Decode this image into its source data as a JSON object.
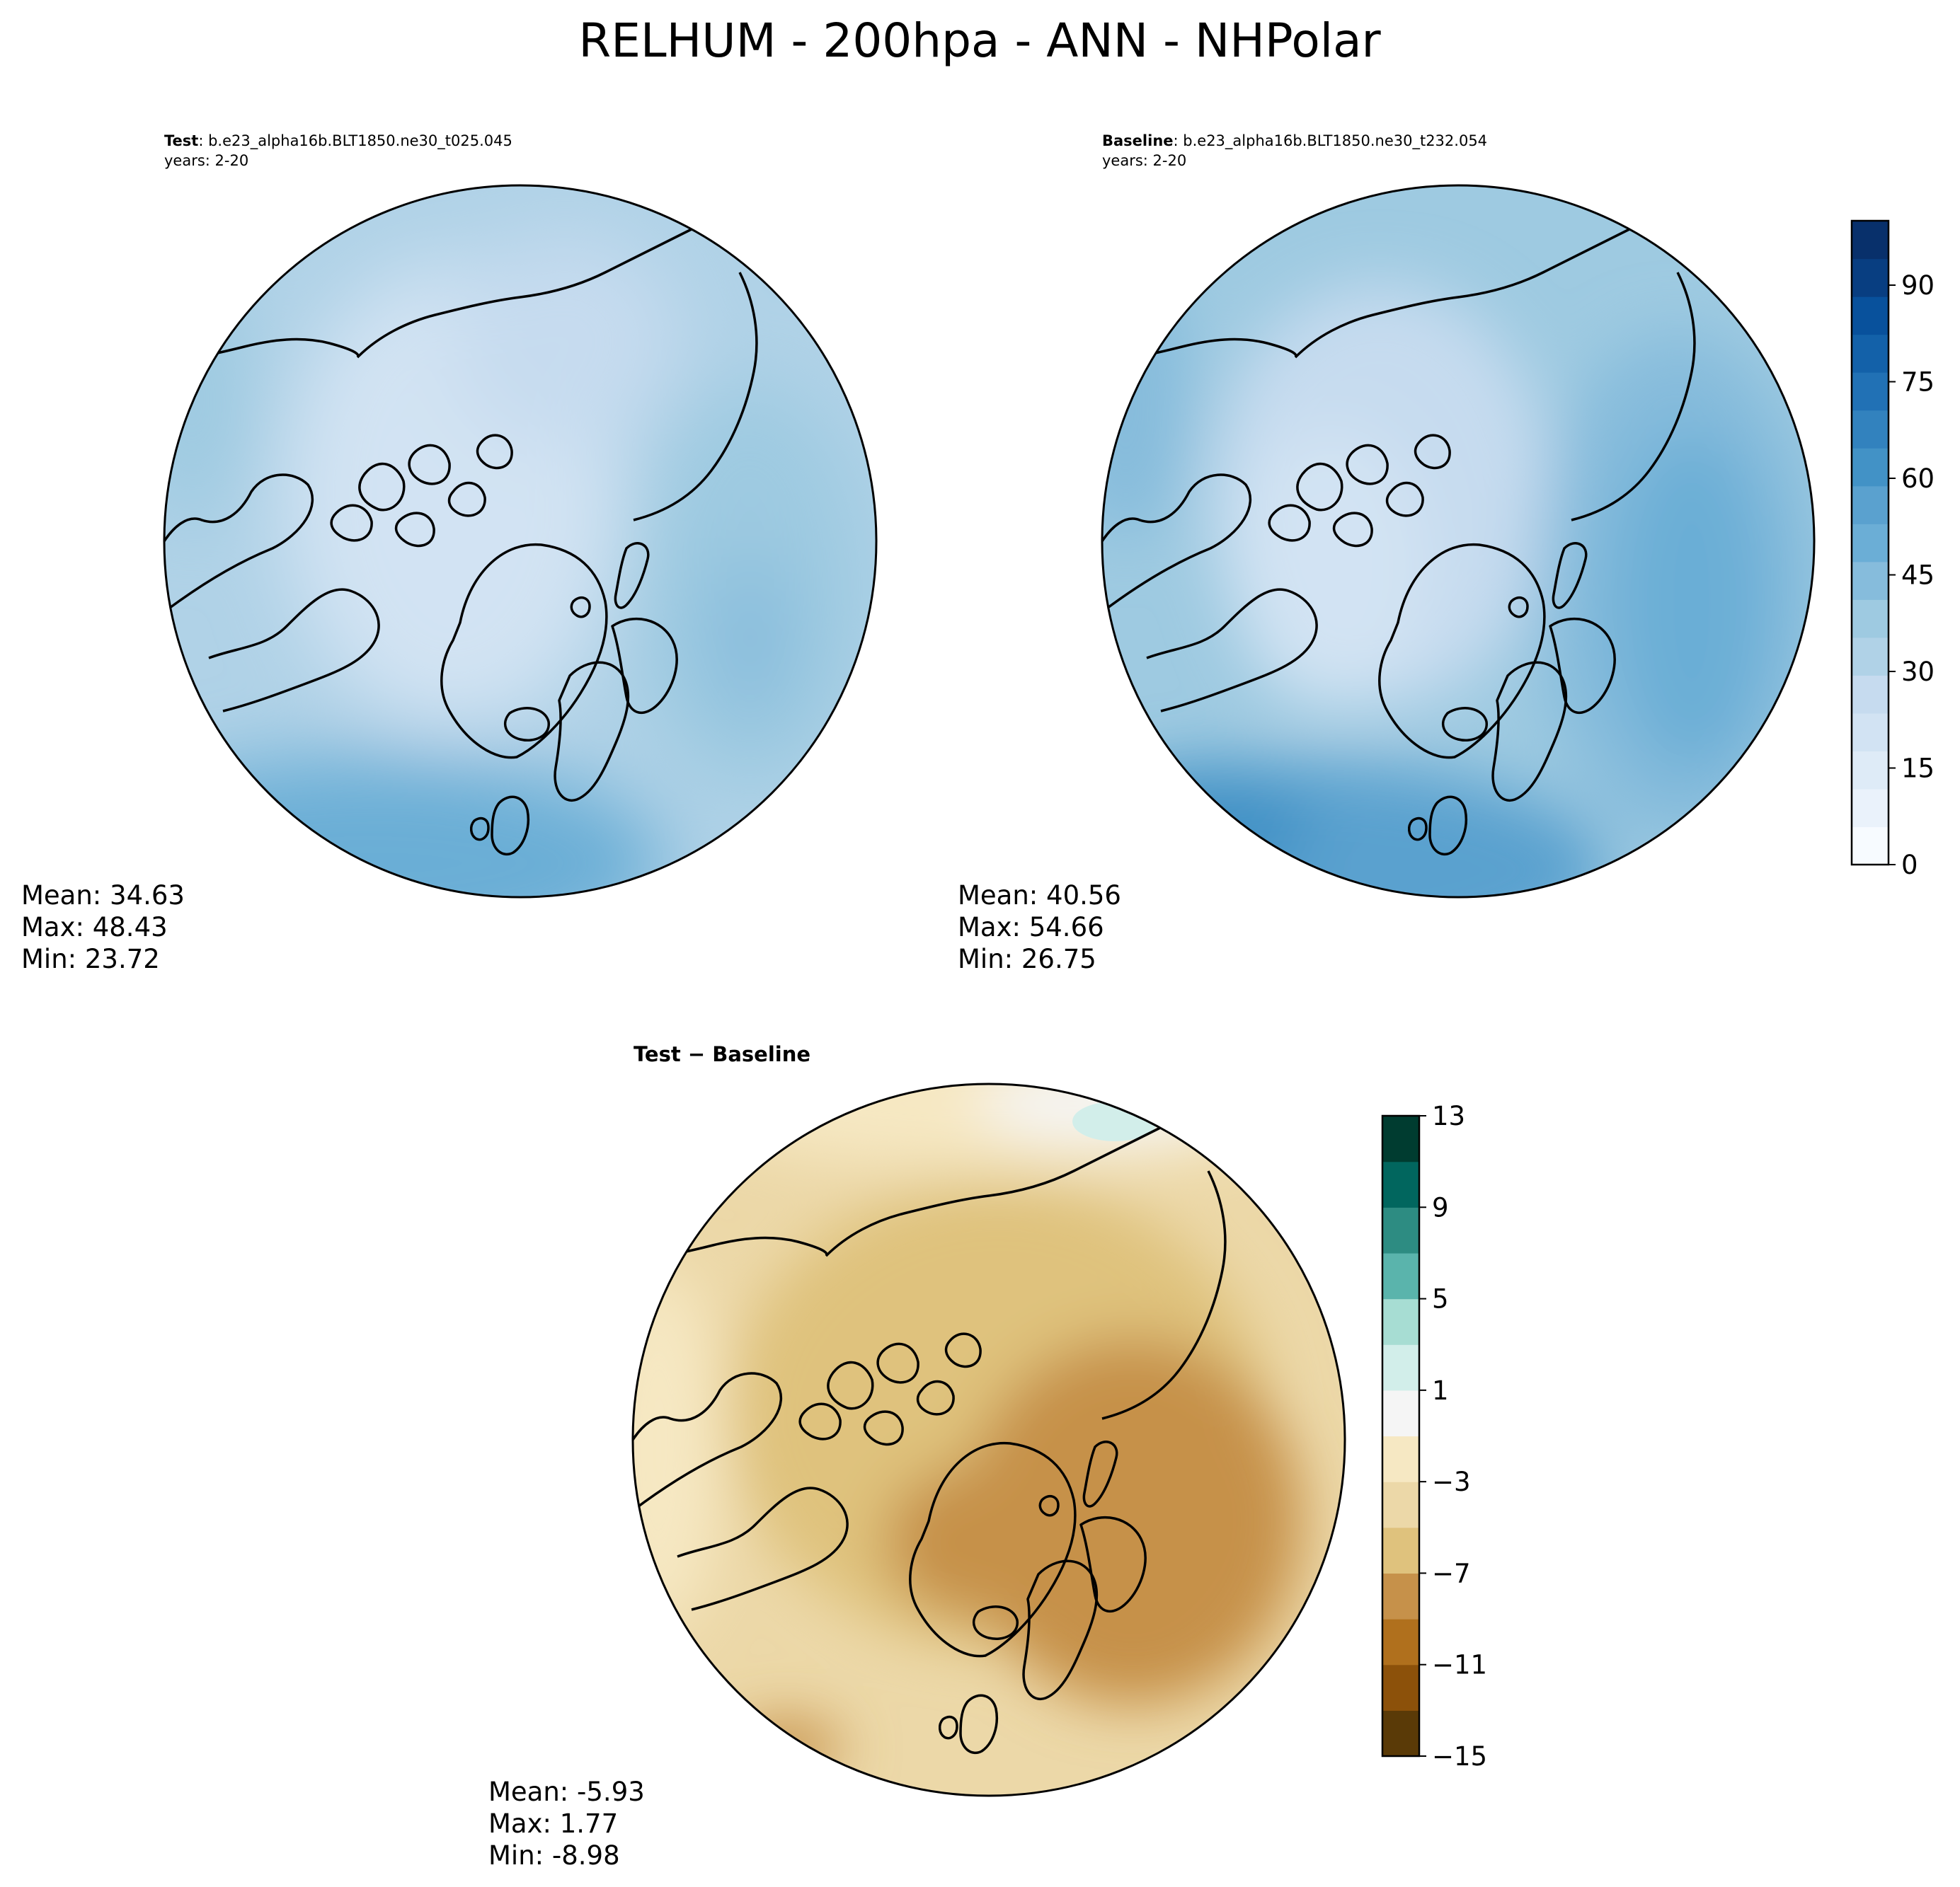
{
  "title": "RELHUM - 200hpa - ANN - NHPolar",
  "colors": {
    "seq": [
      "#f7fbff",
      "#eaf2fb",
      "#deebf7",
      "#d2e3f3",
      "#c6dbef",
      "#b0d2e7",
      "#9ecae1",
      "#86bcdc",
      "#6baed6",
      "#5aa1cf",
      "#4292c6",
      "#3282be",
      "#2171b5",
      "#1361a9",
      "#08519c",
      "#083e81",
      "#08306b"
    ],
    "div": [
      "#5a3a07",
      "#8c510a",
      "#b0701d",
      "#c6914a",
      "#dfc27d",
      "#ecd8a8",
      "#f6e8c3",
      "#f5f5f5",
      "#d2eeea",
      "#a7ddd3",
      "#5ab4ac",
      "#2d8c82",
      "#01665e",
      "#003c30"
    ],
    "coast": "#000000"
  },
  "panels": {
    "test": {
      "label_bold": "Test",
      "label_rest": ": b.e23_alpha16b.BLT1850.ne30_t025.045",
      "years": "years: 2-20",
      "stats": {
        "mean": "Mean: 34.63",
        "max": "Max: 48.43",
        "min": "Min: 23.72"
      }
    },
    "baseline": {
      "label_bold": "Baseline",
      "label_rest": ": b.e23_alpha16b.BLT1850.ne30_t232.054",
      "years": "years: 2-20",
      "stats": {
        "mean": "Mean: 40.56",
        "max": "Max: 54.66",
        "min": "Min: 26.75"
      }
    },
    "diff": {
      "label": "Test − Baseline",
      "stats": {
        "mean": "Mean: -5.93",
        "max": "Max:  1.77",
        "min": "Min: -8.98"
      }
    }
  },
  "colorbars": {
    "main": {
      "ticks": [
        "0",
        "15",
        "30",
        "45",
        "60",
        "75",
        "90"
      ],
      "tick_values": [
        0,
        15,
        30,
        45,
        60,
        75,
        90
      ],
      "range": [
        0,
        100
      ]
    },
    "diff": {
      "ticks": [
        "−15",
        "−11",
        "−7",
        "−3",
        "1",
        "5",
        "9",
        "13"
      ],
      "tick_values": [
        -15,
        -11,
        -7,
        -3,
        1,
        5,
        9,
        13
      ],
      "range": [
        -15,
        13
      ]
    }
  },
  "chart_data": [
    {
      "type": "heatmap",
      "name": "Test",
      "projection": "north polar stereographic",
      "variable": "RELHUM",
      "level": "200hpa",
      "season": "ANN",
      "mean": 34.63,
      "max": 48.43,
      "min": 23.72,
      "levels": [
        0,
        5,
        10,
        15,
        20,
        25,
        30,
        35,
        40,
        45,
        50,
        55,
        60,
        65,
        70,
        75,
        80,
        85,
        90,
        95,
        100
      ],
      "cmap": "Blues"
    },
    {
      "type": "heatmap",
      "name": "Baseline",
      "projection": "north polar stereographic",
      "variable": "RELHUM",
      "level": "200hpa",
      "season": "ANN",
      "mean": 40.56,
      "max": 54.66,
      "min": 26.75,
      "levels": [
        0,
        5,
        10,
        15,
        20,
        25,
        30,
        35,
        40,
        45,
        50,
        55,
        60,
        65,
        70,
        75,
        80,
        85,
        90,
        95,
        100
      ],
      "cmap": "Blues"
    },
    {
      "type": "heatmap",
      "name": "Test − Baseline",
      "projection": "north polar stereographic",
      "mean": -5.93,
      "max": 1.77,
      "min": -8.98,
      "levels": [
        -15,
        -13,
        -11,
        -9,
        -7,
        -5,
        -3,
        -1,
        1,
        3,
        5,
        7,
        9,
        11,
        13
      ],
      "cmap": "BrBG"
    }
  ]
}
